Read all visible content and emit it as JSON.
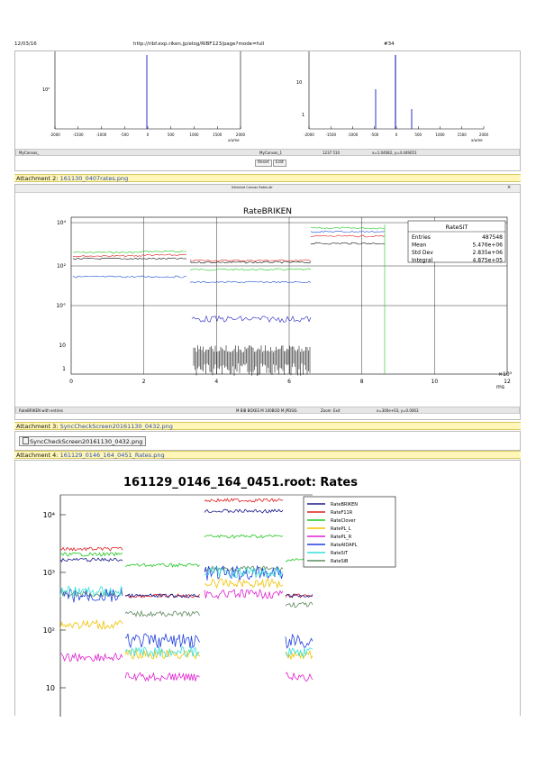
{
  "header": {
    "date": "12/03/16",
    "url": "http://ribf.exp.riken.jp/elog/RIBF123/page?mode=full",
    "page": "#34"
  },
  "top_charts": {
    "left": {
      "ylabel_tick": "10²",
      "xticks": [
        "-2000",
        "-1500",
        "-1000",
        "-500",
        "0",
        "500",
        "1000",
        "1500",
        "2000"
      ],
      "xunit": "x/ume"
    },
    "right": {
      "yticks": [
        "10",
        "1"
      ],
      "xticks": [
        "-2000",
        "-1500",
        "-1000",
        "-500",
        "0",
        "500",
        "1000",
        "1500",
        "2000"
      ],
      "xunit": "x/ume"
    }
  },
  "canvas_status": {
    "name": "MyCanvas_",
    "obj": "MyCanvas_1",
    "coords": "1237 510",
    "xy": "x=1.04082, y=4.449051",
    "reset": "Reset",
    "edit": "Edit"
  },
  "attachments": [
    {
      "label": "Attachment 2:",
      "file": "161130_0407rates.png"
    },
    {
      "label": "Attachment 3:",
      "file": "SyncCheckScreen20161130_0432.png"
    },
    {
      "label": "Attachment 4:",
      "file": "161129_0146_164_0451_Rates.png"
    }
  ],
  "sync_button": "SyncCheckScreen20161130_0432.png",
  "chart2": {
    "window_title": "Selected Canvas Rates.dir",
    "title": "RateBRIKEN",
    "stats": {
      "name": "RateSiT",
      "rows": [
        [
          "Entries",
          "487548"
        ],
        [
          "Mean",
          "5.476e+06"
        ],
        [
          "Std Dev",
          "2.835e+06"
        ],
        [
          "Integral",
          "4.875e+05"
        ]
      ]
    },
    "yticks": [
      "10⁴",
      "10²",
      "10°",
      "10",
      "1"
    ],
    "xticks": [
      "0",
      "2",
      "4",
      "6",
      "8",
      "10",
      "12"
    ],
    "xexp": "×10³",
    "xunit": "ms",
    "status_left": "RateBRIKEN with entries",
    "status_mid": "M  BIB BOXES   M  100BOD   M  JPDSIS",
    "status_zoom": "Zoom",
    "status_exit": "Exit",
    "status_right": "x=300e+03, y=0.0063"
  },
  "chart3": {
    "title": "161129_0146_164_0451.root: Rates",
    "yticks": [
      "10⁴",
      "10³",
      "10²",
      "10"
    ],
    "legend": [
      {
        "name": "RateBRIKEN",
        "color": "#1a1a8c"
      },
      {
        "name": "RateF11R",
        "color": "#e02020"
      },
      {
        "name": "RateClover",
        "color": "#22c722"
      },
      {
        "name": "RatePL_L",
        "color": "#f2c200"
      },
      {
        "name": "RatePL_R",
        "color": "#e020d0"
      },
      {
        "name": "RateAIDAPL",
        "color": "#1f3fe0"
      },
      {
        "name": "RateSiT",
        "color": "#33e0d8"
      },
      {
        "name": "RateSiB",
        "color": "#5f8a5f"
      }
    ]
  },
  "colors": {
    "attachment_bar": "#fff6b8",
    "link": "#2a4fb5"
  }
}
